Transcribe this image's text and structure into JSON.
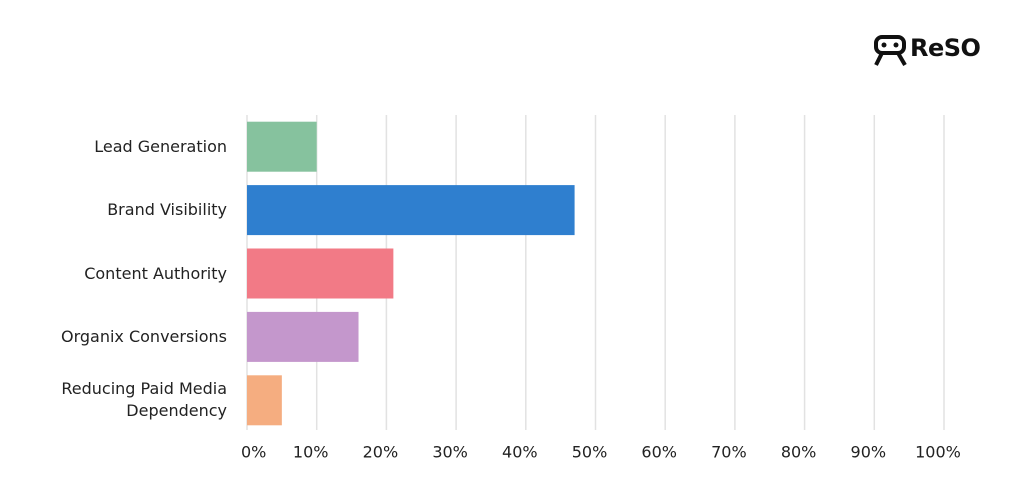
{
  "brand": "ReSO",
  "chart_data": {
    "type": "barh",
    "categories": [
      "Lead Generation",
      "Brand Visibility",
      "Content Authority",
      "Organix Conversions",
      "Reducing Paid Media Dependency"
    ],
    "values": [
      10,
      47,
      21,
      16,
      5
    ],
    "colors": [
      "#86c29e",
      "#2f7fcf",
      "#f27a86",
      "#c497cc",
      "#f5ad80"
    ],
    "xlim": [
      0,
      100
    ],
    "xticks": [
      {
        "value": 0,
        "label": "0%"
      },
      {
        "value": 10,
        "label": "10%"
      },
      {
        "value": 20,
        "label": "20%"
      },
      {
        "value": 30,
        "label": "30%"
      },
      {
        "value": 40,
        "label": "40%"
      },
      {
        "value": 50,
        "label": "50%"
      },
      {
        "value": 60,
        "label": "60%"
      },
      {
        "value": 70,
        "label": "70%"
      },
      {
        "value": 80,
        "label": "80%"
      },
      {
        "value": 90,
        "label": "90%"
      },
      {
        "value": 100,
        "label": "100%"
      }
    ],
    "grid": true
  }
}
